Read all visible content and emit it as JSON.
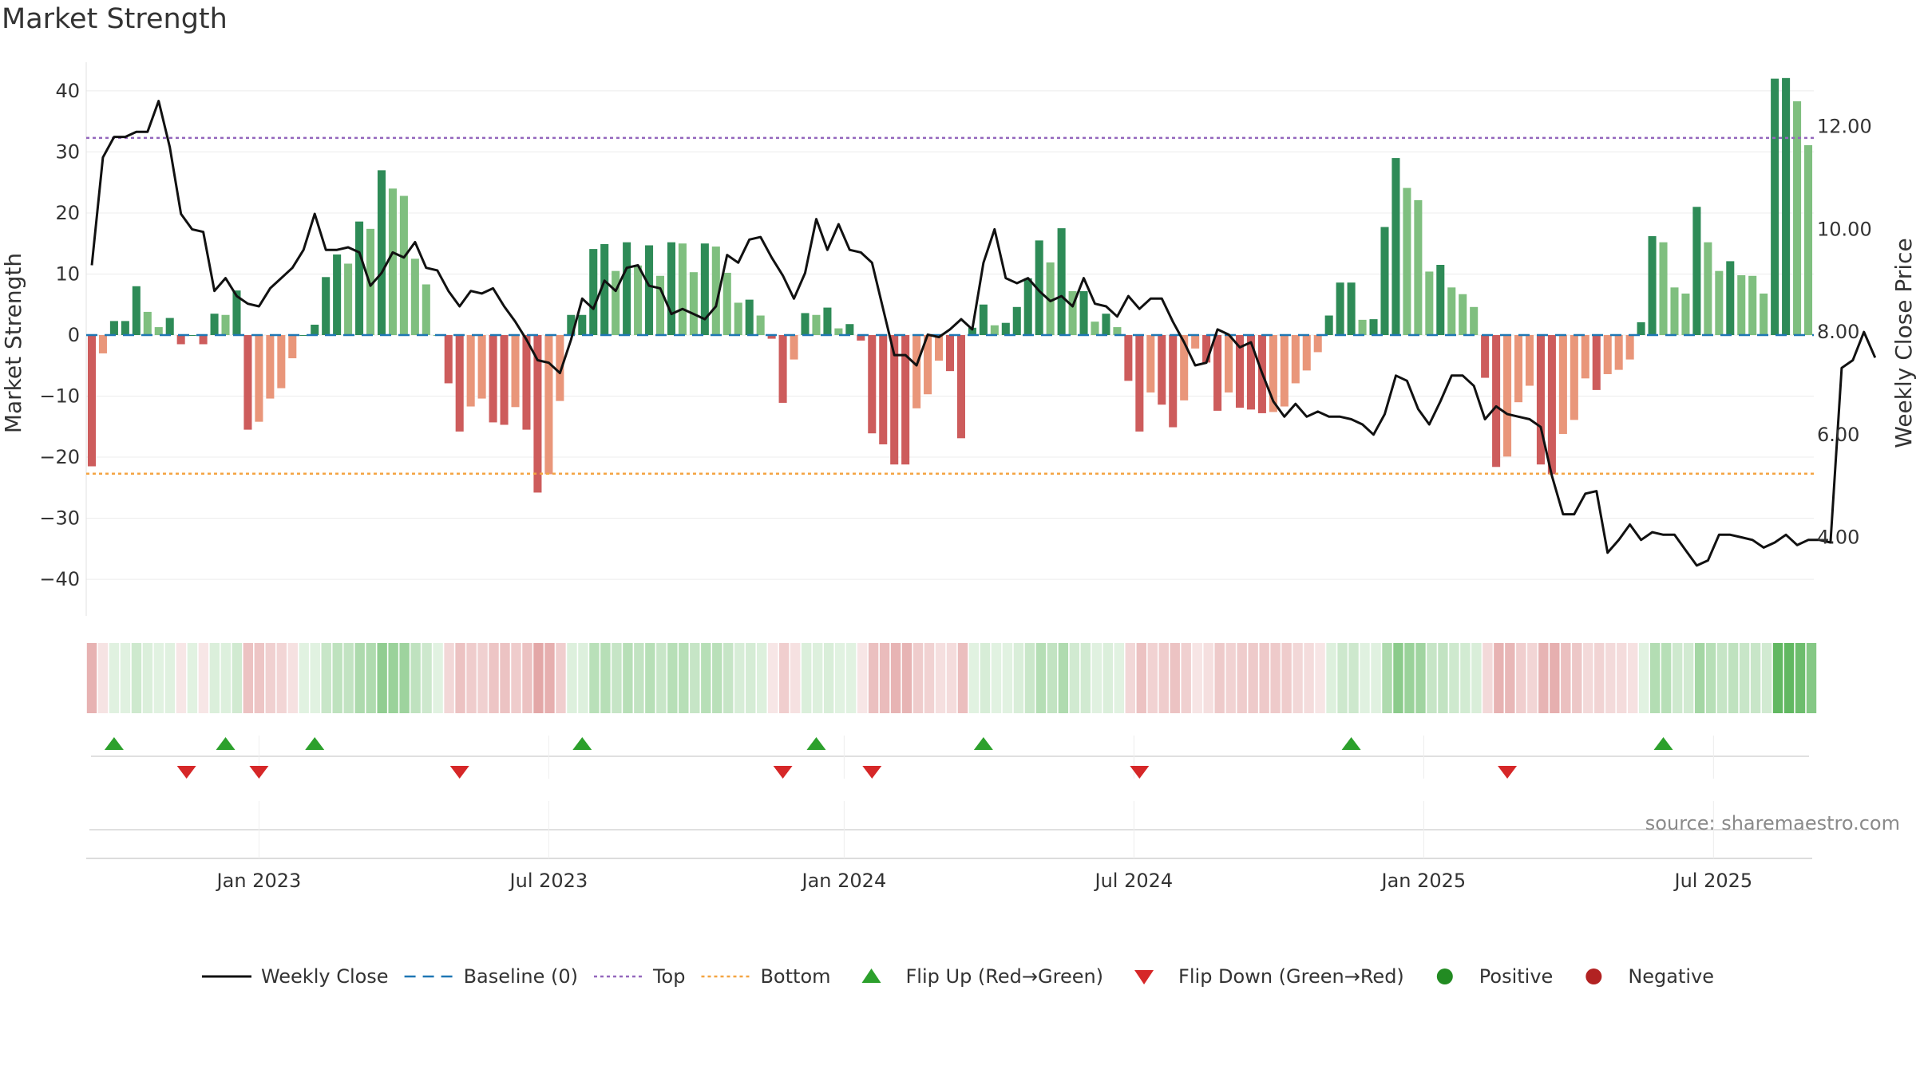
{
  "chart_data": {
    "type": "bar+line",
    "title": "Market Strength",
    "ylabel_left": "Market Strength",
    "ylabel_right": "Weekly Close Price",
    "source": "source: sharemaestro.com",
    "ylim_left": [
      -46,
      46
    ],
    "ylim_right": [
      2.47,
      13.41
    ],
    "yticks_left": [
      40,
      30,
      20,
      10,
      0,
      -10,
      -20,
      -30,
      -40
    ],
    "ytick_labels_left": [
      "40",
      "30",
      "20",
      "10",
      "0",
      "−10",
      "−20",
      "−30",
      "−40"
    ],
    "yticks_right": [
      12,
      10,
      8,
      6,
      4
    ],
    "ytick_labels_right": [
      "12.00",
      "10.00",
      "8.00",
      "6.00",
      "4.00"
    ],
    "x_tick_labels": [
      "Jan 2023",
      "Jul 2023",
      "Jan 2024",
      "Jul 2024",
      "Jan 2025",
      "Jul 2025"
    ],
    "x_tick_weeks": [
      15,
      41,
      67.5,
      93.5,
      119.5,
      145.5
    ],
    "reference_lines": {
      "top": 32.3,
      "bottom": -22.7,
      "baseline": 0
    },
    "colors": {
      "strong_green": "#2e8b57",
      "light_green": "#7fbf7f",
      "strong_red": "#cd5c5c",
      "light_red": "#e9967a",
      "close_line": "#111111",
      "baseline": "#1f77b4",
      "top": "#9467bd",
      "bottom": "#f4a442",
      "flip_up": "#2ca02c",
      "flip_down": "#d62728",
      "positive": "#228b22",
      "negative": "#b22222"
    },
    "strength": [
      -21.5,
      -3,
      2.3,
      2.3,
      8,
      3.8,
      1.3,
      2.8,
      -1.5,
      0,
      -1.5,
      3.5,
      3.3,
      7.3,
      -15.5,
      -14.2,
      -10.4,
      -8.7,
      -3.8,
      0,
      1.7,
      9.5,
      13.2,
      11.7,
      18.6,
      17.4,
      27,
      24,
      22.8,
      12.5,
      8.3,
      0,
      -7.9,
      -15.8,
      -11.7,
      -10.4,
      -14.3,
      -14.7,
      -11.8,
      -15.5,
      -25.8,
      -22.8,
      -10.8,
      3.3,
      3.3,
      14.1,
      14.9,
      10.5,
      15.2,
      11.4,
      14.7,
      9.7,
      15.2,
      15,
      10.3,
      15,
      14.5,
      10.2,
      5.3,
      5.8,
      3.2,
      -0.6,
      -11.1,
      -4,
      3.6,
      3.3,
      4.5,
      1.1,
      1.8,
      -0.9,
      -16.1,
      -17.9,
      -21.2,
      -21.2,
      -12,
      -9.7,
      -4.2,
      -5.9,
      -16.9,
      1.2,
      5,
      1.6,
      2,
      4.6,
      9.3,
      15.5,
      11.9,
      17.5,
      7.2,
      7.2,
      2.2,
      3.5,
      1.3,
      -7.5,
      -15.8,
      -9.4,
      -11.4,
      -15.1,
      -10.7,
      -2.2,
      -4.5,
      -12.4,
      -9.4,
      -11.9,
      -12.2,
      -12.8,
      -12.6,
      -11.7,
      -7.9,
      -5.8,
      -2.8,
      3.2,
      8.6,
      8.6,
      2.5,
      2.6,
      17.7,
      29,
      24.1,
      22.1,
      10.4,
      11.5,
      7.8,
      6.7,
      4.6,
      -7,
      -21.6,
      -19.9,
      -11,
      -8.3,
      -21.2,
      -22.8,
      -16.2,
      -13.9,
      -7.1,
      -9,
      -6.4,
      -5.7,
      -4,
      2.1,
      16.2,
      15.2,
      7.8,
      6.8,
      21,
      15.2,
      10.5,
      12.1,
      9.8,
      9.7,
      6.8,
      42,
      42.1,
      38.3,
      31.1
    ],
    "weekly_close": [
      9.3,
      11.4,
      11.8,
      11.8,
      11.9,
      11.9,
      12.5,
      11.6,
      10.3,
      10,
      9.95,
      8.8,
      9.05,
      8.7,
      8.55,
      8.5,
      8.85,
      9.05,
      9.25,
      9.6,
      10.3,
      9.6,
      9.6,
      9.65,
      9.55,
      8.9,
      9.15,
      9.55,
      9.45,
      9.75,
      9.25,
      9.2,
      8.8,
      8.5,
      8.8,
      8.75,
      8.85,
      8.5,
      8.2,
      7.85,
      7.45,
      7.4,
      7.2,
      7.85,
      8.65,
      8.45,
      9,
      8.8,
      9.25,
      9.3,
      8.9,
      8.85,
      8.35,
      8.45,
      8.35,
      8.25,
      8.5,
      9.5,
      9.35,
      9.8,
      9.85,
      9.45,
      9.1,
      8.65,
      9.15,
      10.2,
      9.6,
      10.1,
      9.6,
      9.55,
      9.35,
      8.45,
      7.55,
      7.55,
      7.35,
      7.95,
      7.9,
      8.05,
      8.25,
      8.05,
      9.35,
      10,
      9.05,
      8.95,
      9.05,
      8.8,
      8.6,
      8.7,
      8.5,
      9.05,
      8.55,
      8.5,
      8.3,
      8.7,
      8.45,
      8.65,
      8.65,
      8.2,
      7.8,
      7.35,
      7.4,
      8.05,
      7.95,
      7.7,
      7.8,
      7.2,
      6.65,
      6.35,
      6.6,
      6.35,
      6.45,
      6.35,
      6.35,
      6.3,
      6.2,
      6,
      6.4,
      7.15,
      7.05,
      6.5,
      6.2,
      6.65,
      7.15,
      7.15,
      6.95,
      6.3,
      6.55,
      6.4,
      6.35,
      6.3,
      6.15,
      5.2,
      4.45,
      4.45,
      4.85,
      4.9,
      3.7,
      3.95,
      4.25,
      3.95,
      4.1,
      4.05,
      4.05,
      3.75,
      3.45,
      3.55,
      4.05,
      4.05,
      4,
      3.95,
      3.8,
      3.9,
      4.05,
      3.85,
      3.95,
      3.95,
      3.9,
      7.3,
      7.45,
      8,
      7.5
    ],
    "flip_up_weeks": [
      2,
      12,
      20,
      44,
      65,
      80,
      113,
      141
    ],
    "flip_down_weeks": [
      8.5,
      15,
      33,
      62,
      70,
      94,
      127
    ],
    "legend": [
      {
        "label": "Weekly Close",
        "icon": "solid-line-icon"
      },
      {
        "label": "Baseline (0)",
        "icon": "dashed-line-icon"
      },
      {
        "label": "Top",
        "icon": "dotted-line-icon"
      },
      {
        "label": "Bottom",
        "icon": "dotted-line-icon"
      },
      {
        "label": "Flip Up (Red→Green)",
        "icon": "triangle-up-icon"
      },
      {
        "label": "Flip Down (Green→Red)",
        "icon": "triangle-down-icon"
      },
      {
        "label": "Positive",
        "icon": "circle-icon"
      },
      {
        "label": "Negative",
        "icon": "circle-icon"
      }
    ]
  }
}
